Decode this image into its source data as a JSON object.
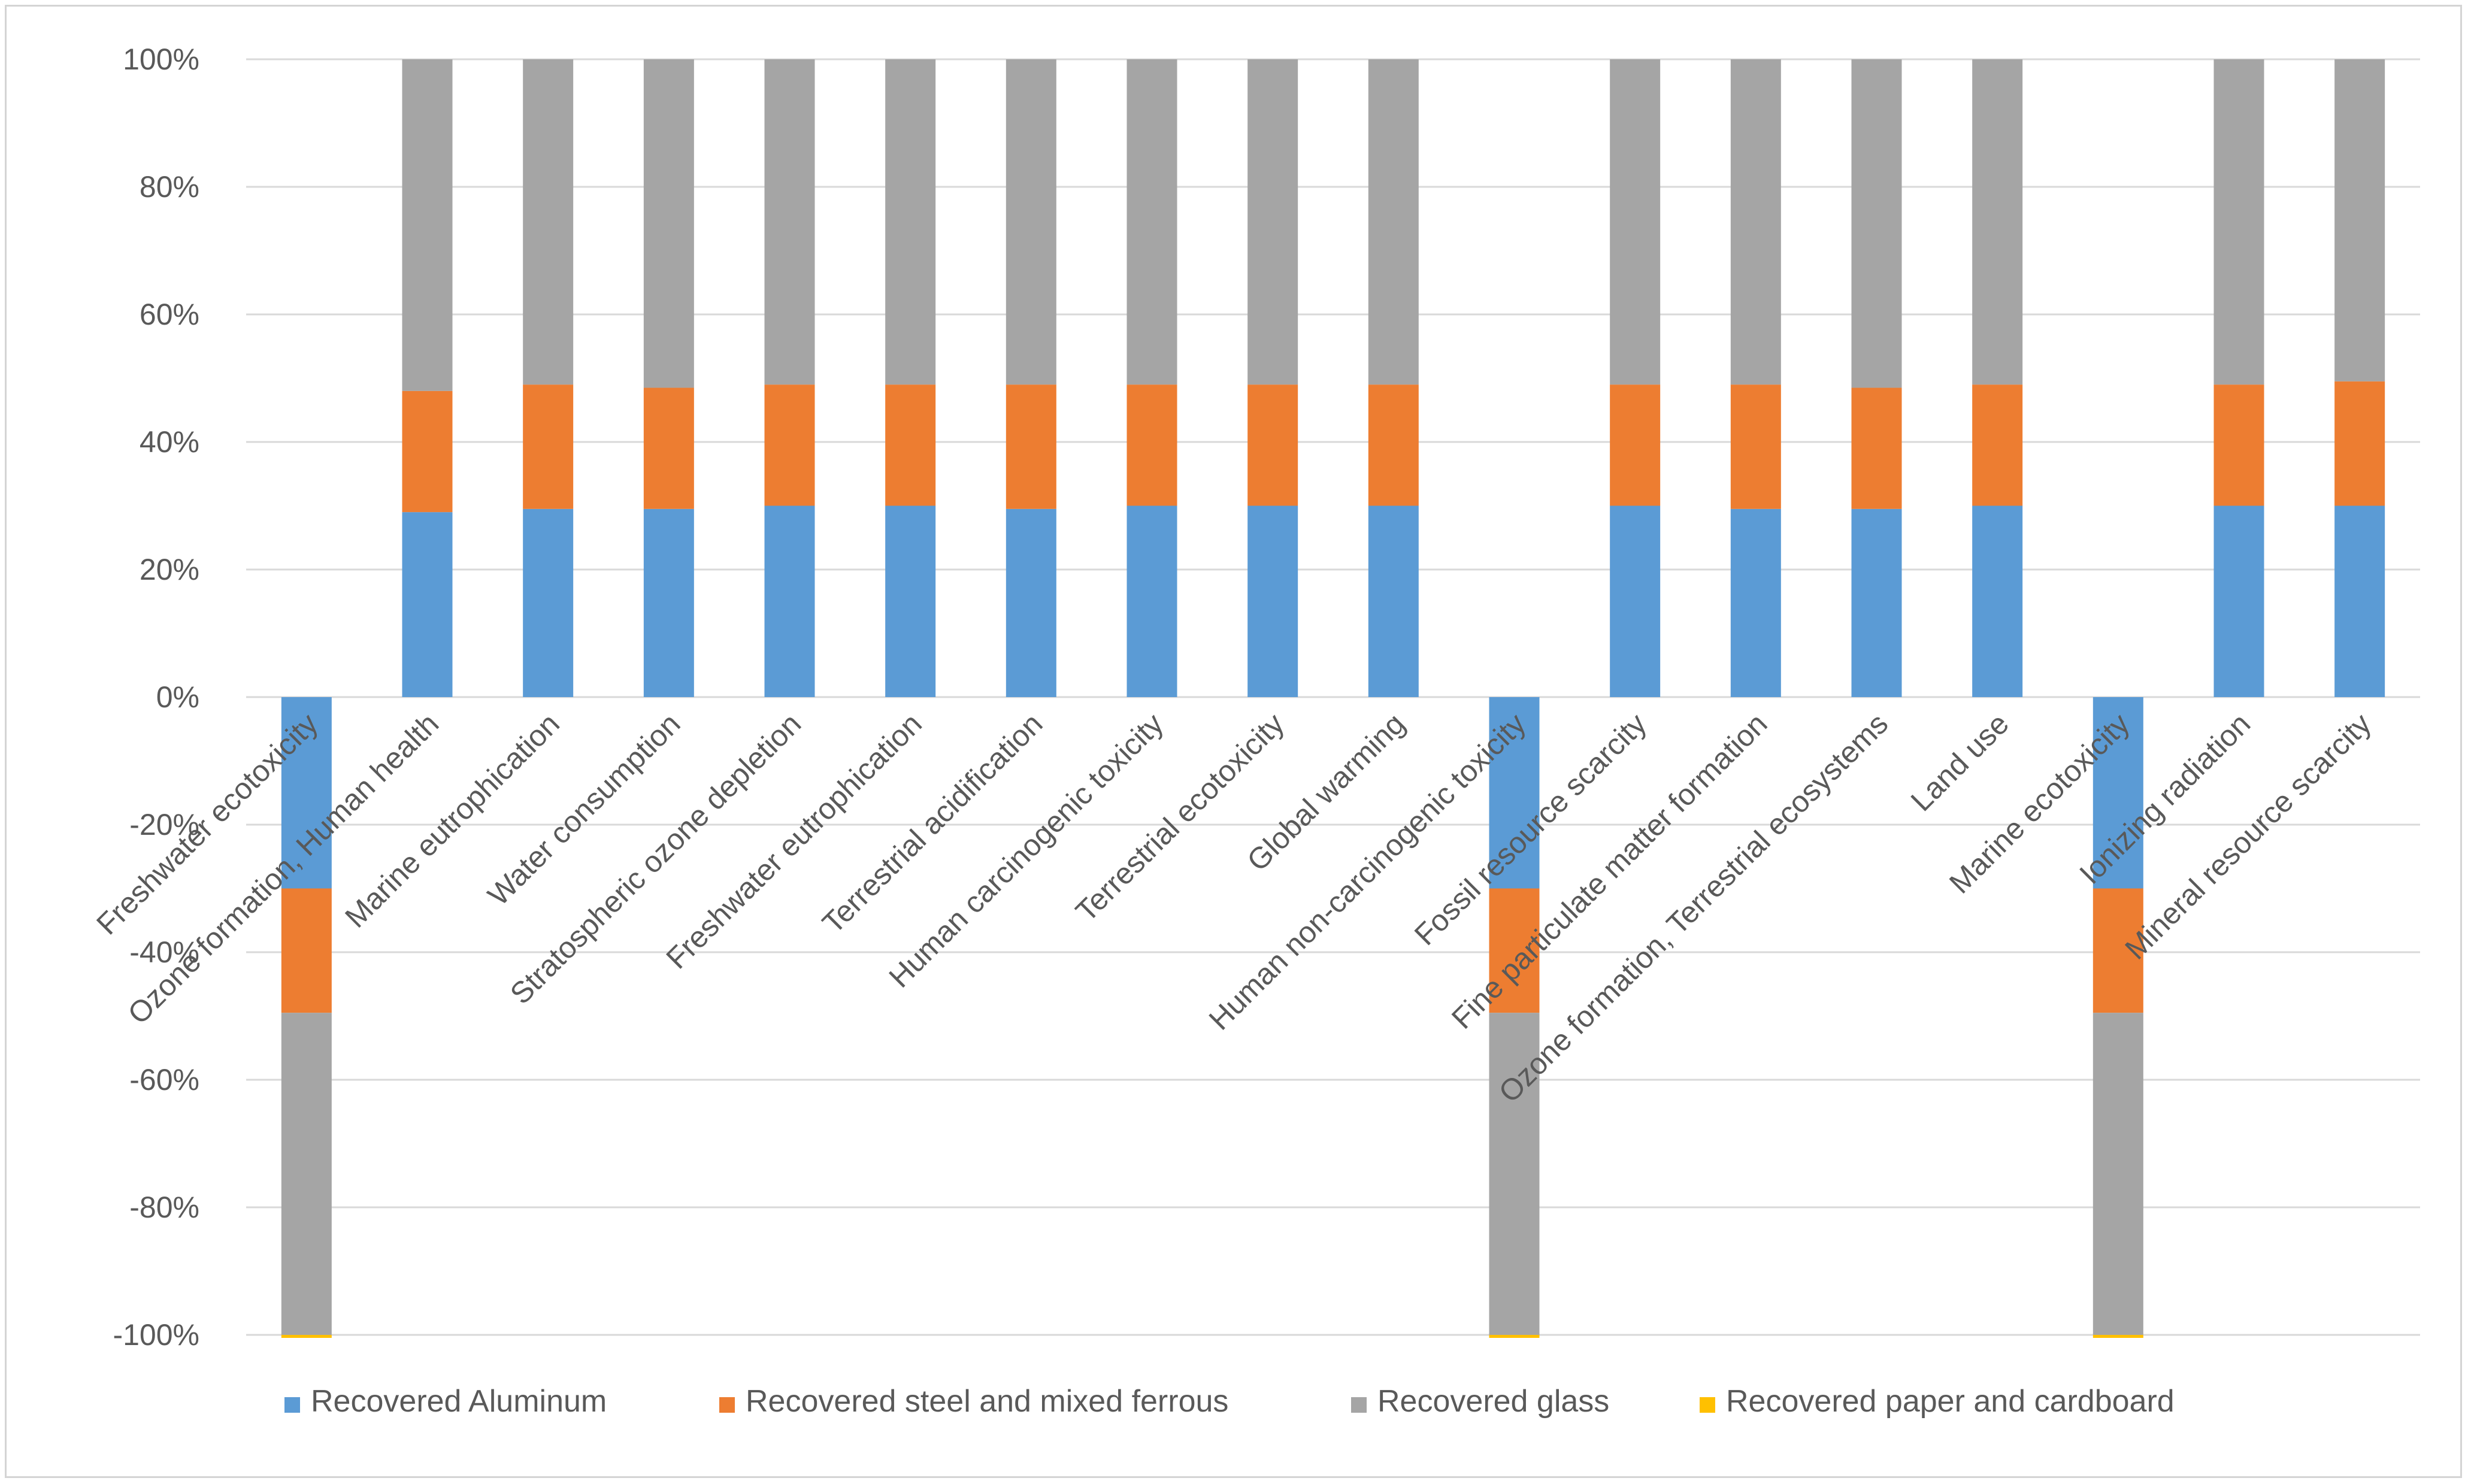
{
  "chart_data": {
    "type": "bar",
    "stacked": true,
    "title": "",
    "xlabel": "",
    "ylabel": "",
    "ylim": [
      -100,
      100
    ],
    "yticks": [
      100,
      80,
      60,
      40,
      20,
      0,
      -20,
      -40,
      -60,
      -80,
      -100
    ],
    "ytick_format": "percent",
    "grid": true,
    "legend_position": "bottom",
    "categories": [
      "Freshwater ecotoxicity",
      "Ozone formation, Human health",
      "Marine eutrophication",
      "Water consumption",
      "Stratospheric ozone depletion",
      "Freshwater eutrophication",
      "Terrestrial acidification",
      "Human carcinogenic toxicity",
      "Terrestrial ecotoxicity",
      "Global warming",
      "Human non-carcinogenic toxicity",
      "Fossil resource scarcity",
      "Fine particulate matter formation",
      "Ozone formation, Terrestrial ecosystems",
      "Land use",
      "Marine ecotoxicity",
      "Ionizing radiation",
      "Mineral resource scarcity"
    ],
    "series": [
      {
        "name": "Recovered Aluminum",
        "color": "#5b9bd5",
        "values": [
          -30,
          29,
          29.5,
          29.5,
          30,
          30,
          29.5,
          30,
          30,
          30,
          -30,
          30,
          29.5,
          29.5,
          30,
          -30,
          30,
          30
        ]
      },
      {
        "name": "Recovered steel and mixed ferrous",
        "color": "#ed7d31",
        "values": [
          -19.5,
          19,
          19.5,
          19,
          19,
          19,
          19.5,
          19,
          19,
          19,
          -19.5,
          19,
          19.5,
          19,
          19,
          -19.5,
          19,
          19.5
        ]
      },
      {
        "name": "Recovered glass",
        "color": "#a5a5a5",
        "values": [
          -50.5,
          52,
          51,
          51.5,
          51,
          51,
          51,
          51,
          51,
          51,
          -50.5,
          51,
          51,
          51.5,
          51,
          -50.5,
          51,
          50.5
        ]
      },
      {
        "name": "Recovered paper and cardboard",
        "color": "#ffc000",
        "values": [
          -0.4,
          0,
          0,
          0,
          0,
          0,
          0,
          0,
          0,
          0,
          -0.4,
          0,
          0,
          0,
          0,
          -0.4,
          0,
          0
        ]
      }
    ]
  }
}
